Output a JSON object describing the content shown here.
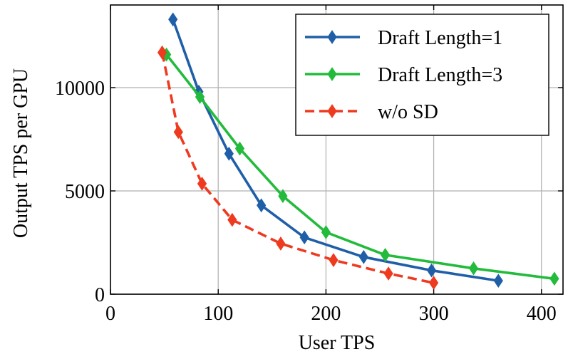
{
  "chart_data": {
    "type": "line",
    "xlabel": "User TPS",
    "ylabel": "Output TPS per GPU",
    "xlim": [
      0,
      420
    ],
    "ylim": [
      0,
      14000
    ],
    "xticks": [
      0,
      100,
      200,
      300,
      400
    ],
    "yticks": [
      0,
      5000,
      10000
    ],
    "xtick_labels": [
      "0",
      "100",
      "200",
      "300",
      "400"
    ],
    "ytick_labels": [
      "0",
      "5000",
      "10000"
    ],
    "grid": true,
    "legend_position": "top-right",
    "series": [
      {
        "name": "Draft Length=1",
        "color": "#1f5fa8",
        "line_style": "solid",
        "marker": "diamond",
        "points": [
          {
            "x": 58,
            "y": 13300
          },
          {
            "x": 82,
            "y": 9800
          },
          {
            "x": 110,
            "y": 6800
          },
          {
            "x": 140,
            "y": 4300
          },
          {
            "x": 180,
            "y": 2750
          },
          {
            "x": 235,
            "y": 1800
          },
          {
            "x": 298,
            "y": 1150
          },
          {
            "x": 360,
            "y": 650
          }
        ]
      },
      {
        "name": "Draft Length=3",
        "color": "#22bb3c",
        "line_style": "solid",
        "marker": "diamond",
        "points": [
          {
            "x": 52,
            "y": 11600
          },
          {
            "x": 83,
            "y": 9550
          },
          {
            "x": 120,
            "y": 7050
          },
          {
            "x": 160,
            "y": 4750
          },
          {
            "x": 200,
            "y": 3000
          },
          {
            "x": 255,
            "y": 1900
          },
          {
            "x": 337,
            "y": 1250
          },
          {
            "x": 412,
            "y": 750
          }
        ]
      },
      {
        "name": "w/o SD",
        "color": "#ee3a1f",
        "line_style": "dashed",
        "marker": "diamond",
        "points": [
          {
            "x": 48,
            "y": 11700
          },
          {
            "x": 63,
            "y": 7850
          },
          {
            "x": 85,
            "y": 5350
          },
          {
            "x": 113,
            "y": 3600
          },
          {
            "x": 158,
            "y": 2450
          },
          {
            "x": 207,
            "y": 1650
          },
          {
            "x": 258,
            "y": 1000
          },
          {
            "x": 300,
            "y": 550
          }
        ]
      }
    ]
  }
}
